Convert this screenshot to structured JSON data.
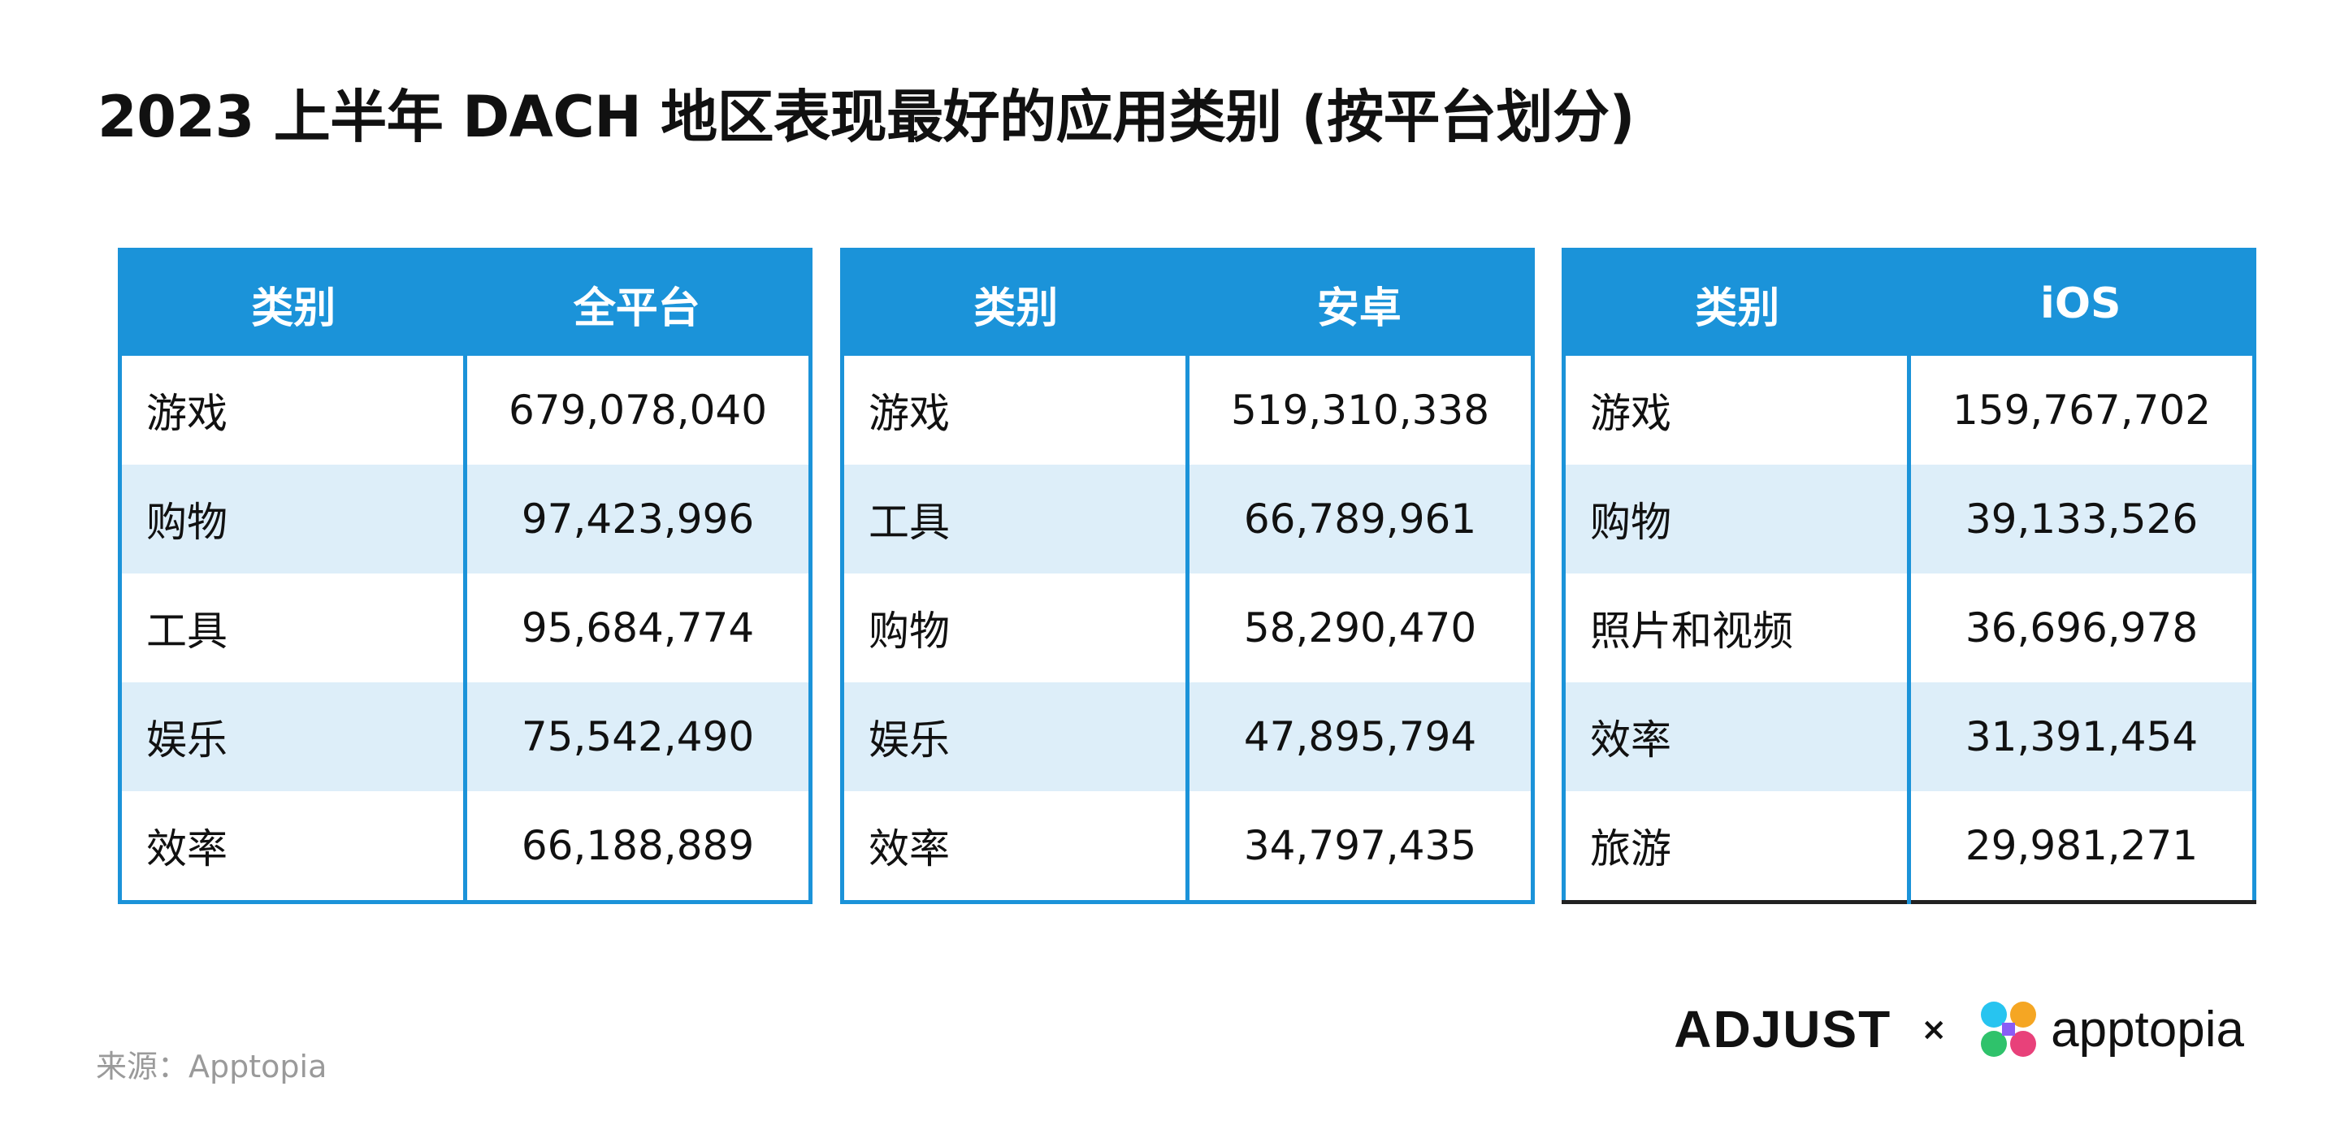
{
  "title": "2023 上半年 DACH 地区表现最好的应用类别 (按平台划分)",
  "tables": [
    {
      "header": {
        "category": "类别",
        "platform": "全平台"
      },
      "rows": [
        {
          "category": "游戏",
          "value": "679,078,040"
        },
        {
          "category": "购物",
          "value": "97,423,996"
        },
        {
          "category": "工具",
          "value": "95,684,774"
        },
        {
          "category": "娱乐",
          "value": "75,542,490"
        },
        {
          "category": "效率",
          "value": "66,188,889"
        }
      ]
    },
    {
      "header": {
        "category": "类别",
        "platform": "安卓"
      },
      "rows": [
        {
          "category": "游戏",
          "value": "519,310,338"
        },
        {
          "category": "工具",
          "value": "66,789,961"
        },
        {
          "category": "购物",
          "value": "58,290,470"
        },
        {
          "category": "娱乐",
          "value": "47,895,794"
        },
        {
          "category": "效率",
          "value": "34,797,435"
        }
      ]
    },
    {
      "header": {
        "category": "类别",
        "platform": "iOS"
      },
      "rows": [
        {
          "category": "游戏",
          "value": "159,767,702"
        },
        {
          "category": "购物",
          "value": "39,133,526"
        },
        {
          "category": "照片和视频",
          "value": "36,696,978"
        },
        {
          "category": "效率",
          "value": "31,391,454"
        },
        {
          "category": "旅游",
          "value": "29,981,271"
        }
      ]
    }
  ],
  "source": "来源：Apptopia",
  "logos": {
    "adjust": "ADJUST",
    "separator": "×",
    "apptopia": "apptopia"
  },
  "colors": {
    "header_bg": "#1b93d9",
    "alt_row_bg": "#ddeef9",
    "text": "#111111",
    "source_text": "#9a9a9a"
  }
}
